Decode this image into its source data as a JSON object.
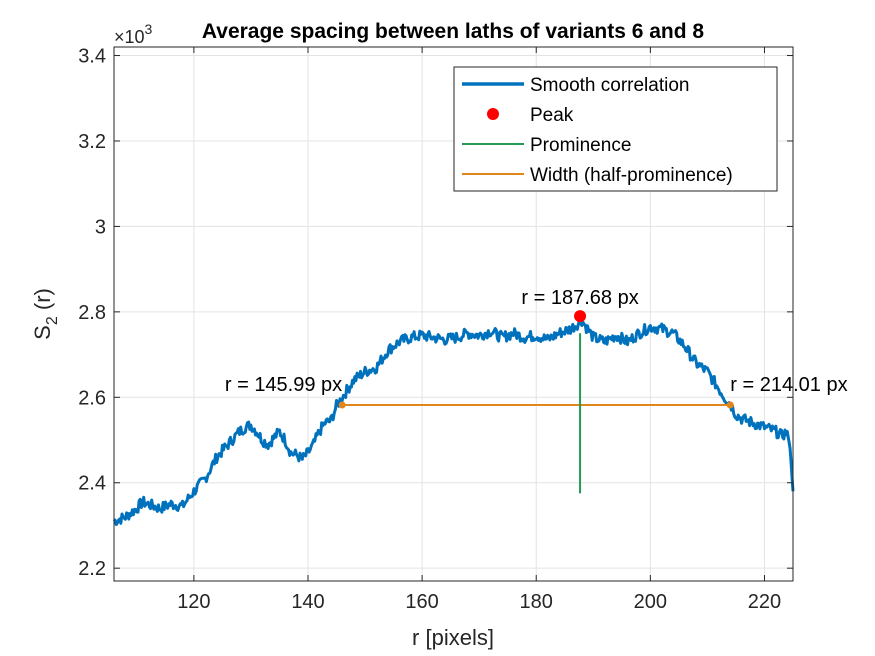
{
  "chart_data": {
    "type": "line",
    "title": "Average spacing between laths of variants 6 and 8",
    "xlabel": "r [pixels]",
    "ylabel_main": "S",
    "ylabel_sub": "2",
    "ylabel_tail": " (r)",
    "y_exponent_prefix": "×10",
    "y_exponent_power": "3",
    "xlim": [
      106,
      225
    ],
    "ylim": [
      2.17,
      3.42
    ],
    "xticks": [
      120,
      140,
      160,
      180,
      200,
      220
    ],
    "yticks": [
      2.2,
      2.4,
      2.6,
      2.8,
      3.0,
      3.2,
      3.4
    ],
    "ytick_labels": [
      "2.2",
      "2.4",
      "2.6",
      "2.8",
      "3",
      "3.2",
      "3.4"
    ],
    "grid": true,
    "legend_position": "top-right",
    "legend": [
      {
        "label": "Smooth correlation",
        "kind": "line-thick",
        "color": "#0072BD"
      },
      {
        "label": "Peak",
        "kind": "dot",
        "color": "#FF0000"
      },
      {
        "label": "Prominence",
        "kind": "line",
        "color": "#239B56"
      },
      {
        "label": "Width (half-prominence)",
        "kind": "line",
        "color": "#E0861A"
      }
    ],
    "series": [
      {
        "name": "Smooth correlation",
        "color": "#0072BD",
        "x": [
          106,
          108,
          110,
          111,
          112,
          113,
          114,
          116,
          118,
          120,
          122,
          124,
          126,
          128,
          129,
          130,
          131,
          132,
          133,
          134,
          135,
          136,
          137,
          138,
          139,
          140,
          141,
          142,
          143,
          144,
          145,
          146,
          148,
          150,
          152,
          154,
          156,
          158,
          160,
          162,
          164,
          166,
          168,
          170,
          172,
          174,
          176,
          178,
          180,
          182,
          184,
          186,
          188,
          190,
          192,
          194,
          196,
          198,
          200,
          202,
          204,
          206,
          208,
          210,
          212,
          213,
          214,
          215,
          216,
          218,
          220,
          222,
          223,
          224,
          224.5,
          225
        ],
        "y": [
          2.31,
          2.32,
          2.34,
          2.355,
          2.35,
          2.345,
          2.34,
          2.35,
          2.345,
          2.38,
          2.41,
          2.46,
          2.49,
          2.52,
          2.53,
          2.535,
          2.52,
          2.5,
          2.49,
          2.505,
          2.52,
          2.5,
          2.47,
          2.465,
          2.455,
          2.47,
          2.49,
          2.52,
          2.54,
          2.545,
          2.58,
          2.6,
          2.64,
          2.66,
          2.67,
          2.71,
          2.73,
          2.74,
          2.745,
          2.74,
          2.735,
          2.74,
          2.75,
          2.745,
          2.755,
          2.74,
          2.75,
          2.74,
          2.745,
          2.735,
          2.75,
          2.76,
          2.78,
          2.74,
          2.73,
          2.745,
          2.73,
          2.75,
          2.765,
          2.76,
          2.75,
          2.72,
          2.68,
          2.66,
          2.62,
          2.6,
          2.585,
          2.56,
          2.55,
          2.54,
          2.53,
          2.52,
          2.51,
          2.52,
          2.48,
          2.38
        ]
      }
    ],
    "peak": {
      "x": 187.68,
      "y": 2.79,
      "label": "r = 187.68 px"
    },
    "prominence": {
      "x": 187.68,
      "y_top": 2.75,
      "y_bottom": 2.375
    },
    "width": {
      "x_left": 145.99,
      "x_right": 214.01,
      "y": 2.582,
      "label_left": "r = 145.99 px",
      "label_right": "r = 214.01 px"
    },
    "colors": {
      "line": "#0072BD",
      "peak": "#FF0000",
      "prominence": "#239B56",
      "width": "#E0861A"
    }
  }
}
